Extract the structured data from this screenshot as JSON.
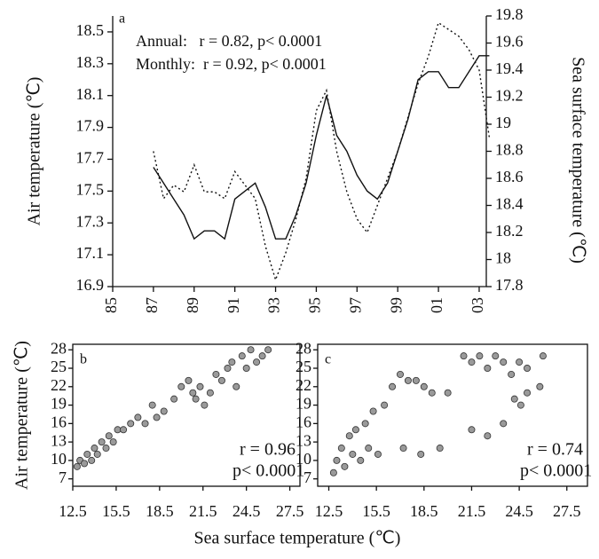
{
  "chart_data": [
    {
      "type": "line",
      "title": "a",
      "annotations": [
        "Annual:   r = 0.82, p< 0.0001",
        "Monthly:  r = 0.92, p< 0.0001"
      ],
      "y_label": "Air temperature (℃)",
      "y2_label": "Sea surface temperature (℃)",
      "x": [
        87,
        87.5,
        88,
        88.5,
        89,
        89.5,
        90,
        90.5,
        91,
        91.5,
        92,
        92.5,
        93,
        93.5,
        94,
        94.5,
        95,
        95.5,
        96,
        96.5,
        97,
        97.5,
        98,
        98.5,
        99,
        99.5,
        100,
        100.5,
        101,
        101.5,
        102,
        102.5,
        103,
        103.5
      ],
      "xlim": [
        85,
        103.35
      ],
      "xticks": [
        85,
        87,
        89,
        91,
        93,
        95,
        97,
        99,
        {
          "value": 101,
          "label": "01"
        },
        {
          "value": 103,
          "label": "03"
        }
      ],
      "ylim": [
        16.9,
        18.6
      ],
      "yticks": [
        16.9,
        17.1,
        17.3,
        17.5,
        17.7,
        17.9,
        18.1,
        18.3,
        18.5
      ],
      "y2lim": [
        17.8,
        19.8
      ],
      "y2ticks": [
        17.8,
        18,
        18.2,
        18.4,
        18.6,
        18.8,
        19,
        19.2,
        19.4,
        19.6,
        19.8
      ],
      "series": [
        {
          "name": "Air temperature",
          "color": "#111111",
          "line_style": "solid",
          "values": [
            17.65,
            17.55,
            17.45,
            17.35,
            17.2,
            17.25,
            17.25,
            17.2,
            17.45,
            17.5,
            17.55,
            17.4,
            17.2,
            17.2,
            17.35,
            17.55,
            17.85,
            18.1,
            17.85,
            17.75,
            17.6,
            17.5,
            17.45,
            17.55,
            17.75,
            17.95,
            18.2,
            18.25,
            18.25,
            18.15,
            18.15,
            18.25,
            18.35,
            18.35
          ]
        },
        {
          "name": "Sea surface temperature",
          "color": "#111111",
          "line_style": "dotted",
          "axis": "y2",
          "values": [
            18.8,
            18.45,
            18.55,
            18.5,
            18.7,
            18.5,
            18.5,
            18.45,
            18.65,
            18.55,
            18.45,
            18.1,
            17.85,
            18.05,
            18.3,
            18.6,
            19.1,
            19.25,
            18.8,
            18.5,
            18.3,
            18.2,
            18.4,
            18.6,
            18.8,
            19.05,
            19.3,
            19.5,
            19.75,
            19.7,
            19.65,
            19.55,
            19.4,
            18.9
          ]
        }
      ]
    },
    {
      "type": "scatter",
      "title": "b",
      "annotations": [
        "r = 0.96",
        "p< 0.0001"
      ],
      "y_label": "Air temperature (℃)",
      "x_label": "Sea surface temperature (℃)",
      "color": "#9a9a9a",
      "x": [
        12.8,
        13.0,
        13.3,
        13.5,
        13.8,
        14.0,
        14.2,
        14.5,
        14.8,
        15.0,
        15.3,
        15.6,
        16.0,
        16.5,
        17.0,
        17.5,
        18.0,
        18.3,
        18.8,
        19.5,
        20.0,
        20.5,
        20.8,
        21.0,
        21.3,
        21.6,
        22.0,
        22.4,
        22.8,
        23.2,
        23.5,
        23.8,
        24.2,
        24.5,
        24.8,
        25.2,
        25.6,
        26.0
      ],
      "values": [
        9,
        10,
        9.5,
        11,
        10,
        12,
        11,
        13,
        12,
        14,
        13,
        15,
        15,
        16,
        17,
        16,
        19,
        17,
        18,
        20,
        22,
        23,
        21,
        20,
        22,
        19,
        21,
        24,
        23,
        25,
        26,
        22,
        27,
        25,
        28,
        26,
        27,
        28
      ],
      "xlim": [
        12.5,
        28.2
      ],
      "xticks": [
        12.5,
        15.5,
        18.5,
        21.5,
        24.5,
        27.5
      ],
      "ylim": [
        5.8,
        28.9
      ],
      "yticks": [
        7,
        10,
        13,
        16,
        19,
        22,
        25,
        28
      ]
    },
    {
      "type": "scatter",
      "title": "c",
      "annotations": [
        "r = 0.74",
        "p< 0.0001"
      ],
      "color": "#9a9a9a",
      "x": [
        12.8,
        13.0,
        13.3,
        13.5,
        13.8,
        14.0,
        14.2,
        14.5,
        14.8,
        15.0,
        15.3,
        15.6,
        16.0,
        16.5,
        17.0,
        17.5,
        18.0,
        18.5,
        19.0,
        17.2,
        18.3,
        19.5,
        20.0,
        21.0,
        21.5,
        22.0,
        22.5,
        23.0,
        23.5,
        24.0,
        24.5,
        25.0,
        21.5,
        22.5,
        23.5,
        24.2,
        25.0,
        25.8,
        26.0,
        24.6
      ],
      "values": [
        8,
        10,
        12,
        9,
        14,
        11,
        15,
        10,
        16,
        12,
        18,
        11,
        19,
        22,
        24,
        23,
        23,
        22,
        21,
        12,
        11,
        12,
        21,
        27,
        26,
        27,
        25,
        27,
        26,
        24,
        26,
        25,
        15,
        14,
        16,
        20,
        21,
        22,
        27,
        19
      ],
      "xlim": [
        11.8,
        28.8
      ],
      "xticks": [
        12.5,
        15.5,
        18.5,
        21.5,
        24.5,
        27.5
      ],
      "ylim": [
        5.8,
        28.9
      ],
      "yticks": [
        7,
        10,
        13,
        16,
        19,
        22,
        25,
        28
      ]
    }
  ]
}
